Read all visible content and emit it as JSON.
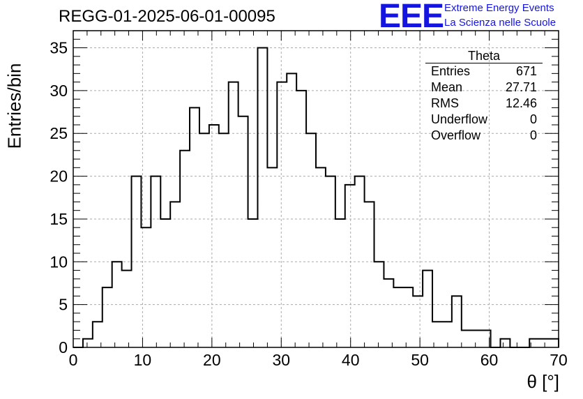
{
  "chart_data": {
    "type": "histogram",
    "title": "REGG-01-2025-06-01-00095",
    "xlabel": "θ [°]",
    "ylabel": "Entries/bin",
    "xlim": [
      0,
      70
    ],
    "ylim": [
      0,
      37
    ],
    "xticks": [
      "0",
      "10",
      "20",
      "30",
      "40",
      "50",
      "60",
      "70"
    ],
    "yticks": [
      "0",
      "5",
      "10",
      "15",
      "20",
      "25",
      "30",
      "35"
    ],
    "grid": true,
    "bin_width": 1.4,
    "bin_edges_start": 0,
    "values": [
      0,
      1,
      3,
      7,
      10,
      9,
      20,
      14,
      20,
      15,
      17,
      23,
      28,
      25,
      26,
      25,
      31,
      27,
      15,
      35,
      21,
      31,
      32,
      30,
      25,
      21,
      20,
      15,
      19,
      20,
      17,
      10,
      8,
      7,
      7,
      6,
      9,
      3,
      3,
      6,
      2,
      2,
      2,
      0,
      1,
      0,
      0,
      1,
      1,
      1
    ],
    "stats": {
      "name": "Theta",
      "rows": [
        {
          "label": "Entries",
          "value": "671"
        },
        {
          "label": "Mean",
          "value": "27.71"
        },
        {
          "label": "RMS",
          "value": "12.46"
        },
        {
          "label": "Underflow",
          "value": "0"
        },
        {
          "label": "Overflow",
          "value": "0"
        }
      ]
    }
  },
  "branding": {
    "logo": "EEE",
    "line1": "Extreme Energy Events",
    "line2": "La Scienza nelle Scuole",
    "color": "#1515e0"
  }
}
